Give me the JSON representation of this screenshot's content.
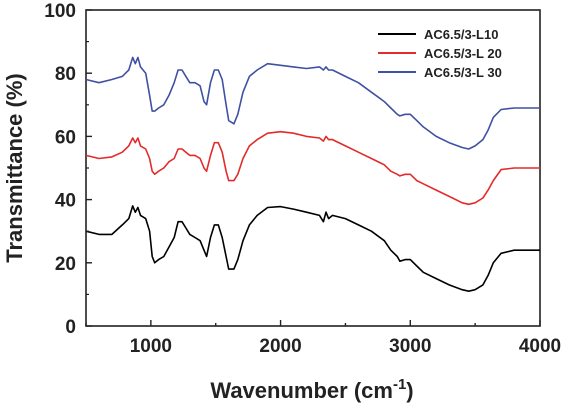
{
  "chart_data": {
    "type": "line",
    "xlabel": "Wavenumber (cm",
    "xlabel_sup": "-1",
    "xlabel_close": ")",
    "ylabel": "Transmittance (%)",
    "xlim": [
      500,
      4000
    ],
    "ylim": [
      0,
      100
    ],
    "xticks": [
      1000,
      2000,
      3000,
      4000
    ],
    "yticks": [
      0,
      20,
      40,
      60,
      80,
      100
    ],
    "xtick_labels": [
      "1000",
      "2000",
      "3000",
      "4000"
    ],
    "ytick_labels": [
      "0",
      "20",
      "40",
      "60",
      "80",
      "100"
    ],
    "grid": false,
    "legend_position": "top-right",
    "series": [
      {
        "name": "AC6.5/3-L10",
        "color": "#000000",
        "points": [
          [
            500,
            30
          ],
          [
            600,
            29
          ],
          [
            700,
            29
          ],
          [
            780,
            32
          ],
          [
            830,
            34
          ],
          [
            860,
            38
          ],
          [
            880,
            36
          ],
          [
            900,
            37.5
          ],
          [
            920,
            35
          ],
          [
            960,
            34
          ],
          [
            990,
            30
          ],
          [
            1010,
            22
          ],
          [
            1030,
            20
          ],
          [
            1060,
            21
          ],
          [
            1100,
            22
          ],
          [
            1140,
            25
          ],
          [
            1180,
            28
          ],
          [
            1210,
            33
          ],
          [
            1240,
            33
          ],
          [
            1270,
            31
          ],
          [
            1300,
            29
          ],
          [
            1340,
            28
          ],
          [
            1380,
            27
          ],
          [
            1410,
            24
          ],
          [
            1430,
            22
          ],
          [
            1460,
            28
          ],
          [
            1490,
            32
          ],
          [
            1520,
            32
          ],
          [
            1550,
            28
          ],
          [
            1580,
            22
          ],
          [
            1600,
            18
          ],
          [
            1640,
            18
          ],
          [
            1670,
            21
          ],
          [
            1710,
            27
          ],
          [
            1760,
            32
          ],
          [
            1820,
            35
          ],
          [
            1900,
            37.5
          ],
          [
            2000,
            37.8
          ],
          [
            2100,
            37
          ],
          [
            2200,
            36
          ],
          [
            2300,
            35
          ],
          [
            2330,
            33
          ],
          [
            2350,
            36
          ],
          [
            2370,
            34
          ],
          [
            2400,
            35
          ],
          [
            2500,
            34
          ],
          [
            2600,
            32
          ],
          [
            2700,
            30
          ],
          [
            2800,
            27
          ],
          [
            2850,
            24
          ],
          [
            2900,
            22
          ],
          [
            2920,
            20.5
          ],
          [
            2960,
            21
          ],
          [
            3000,
            21
          ],
          [
            3050,
            19
          ],
          [
            3100,
            17
          ],
          [
            3200,
            15
          ],
          [
            3300,
            13
          ],
          [
            3400,
            11.5
          ],
          [
            3450,
            11
          ],
          [
            3500,
            11.5
          ],
          [
            3560,
            13
          ],
          [
            3600,
            16
          ],
          [
            3640,
            20
          ],
          [
            3700,
            23
          ],
          [
            3800,
            24
          ],
          [
            4000,
            24
          ]
        ]
      },
      {
        "name": "AC6.5/3-L 20",
        "color": "#e32b2b",
        "points": [
          [
            500,
            54
          ],
          [
            600,
            53
          ],
          [
            700,
            53.5
          ],
          [
            780,
            55
          ],
          [
            830,
            57
          ],
          [
            860,
            59.5
          ],
          [
            880,
            58
          ],
          [
            900,
            59.5
          ],
          [
            920,
            57
          ],
          [
            960,
            56
          ],
          [
            990,
            53
          ],
          [
            1010,
            49
          ],
          [
            1030,
            48
          ],
          [
            1060,
            49
          ],
          [
            1100,
            50
          ],
          [
            1140,
            52
          ],
          [
            1180,
            53
          ],
          [
            1210,
            56
          ],
          [
            1240,
            56
          ],
          [
            1270,
            55
          ],
          [
            1300,
            54
          ],
          [
            1340,
            54
          ],
          [
            1380,
            53
          ],
          [
            1410,
            50
          ],
          [
            1430,
            49
          ],
          [
            1460,
            54
          ],
          [
            1490,
            58
          ],
          [
            1520,
            58
          ],
          [
            1550,
            55
          ],
          [
            1580,
            49
          ],
          [
            1600,
            46
          ],
          [
            1640,
            46
          ],
          [
            1670,
            48
          ],
          [
            1710,
            53
          ],
          [
            1760,
            57
          ],
          [
            1820,
            59
          ],
          [
            1900,
            61
          ],
          [
            2000,
            61.5
          ],
          [
            2100,
            61
          ],
          [
            2200,
            60
          ],
          [
            2300,
            59.5
          ],
          [
            2330,
            58.5
          ],
          [
            2350,
            60
          ],
          [
            2370,
            59
          ],
          [
            2400,
            59
          ],
          [
            2500,
            57
          ],
          [
            2600,
            55
          ],
          [
            2700,
            53
          ],
          [
            2800,
            51
          ],
          [
            2850,
            49
          ],
          [
            2900,
            48
          ],
          [
            2920,
            47.5
          ],
          [
            2960,
            48
          ],
          [
            3000,
            48
          ],
          [
            3050,
            46
          ],
          [
            3100,
            45
          ],
          [
            3200,
            43
          ],
          [
            3300,
            41
          ],
          [
            3400,
            39
          ],
          [
            3450,
            38.5
          ],
          [
            3500,
            39
          ],
          [
            3560,
            40.5
          ],
          [
            3600,
            43
          ],
          [
            3640,
            46
          ],
          [
            3700,
            49.5
          ],
          [
            3800,
            50
          ],
          [
            4000,
            50
          ]
        ]
      },
      {
        "name": "AC6.5/3-L 30",
        "color": "#3f51a3",
        "points": [
          [
            500,
            78
          ],
          [
            600,
            77
          ],
          [
            700,
            78
          ],
          [
            780,
            79
          ],
          [
            830,
            81
          ],
          [
            860,
            85
          ],
          [
            880,
            83
          ],
          [
            900,
            85
          ],
          [
            920,
            82
          ],
          [
            960,
            80
          ],
          [
            990,
            73
          ],
          [
            1010,
            68
          ],
          [
            1030,
            68
          ],
          [
            1060,
            69
          ],
          [
            1100,
            70
          ],
          [
            1140,
            73
          ],
          [
            1180,
            77
          ],
          [
            1210,
            81
          ],
          [
            1240,
            81
          ],
          [
            1270,
            79
          ],
          [
            1300,
            77
          ],
          [
            1340,
            77
          ],
          [
            1380,
            76
          ],
          [
            1410,
            71
          ],
          [
            1430,
            70
          ],
          [
            1460,
            77
          ],
          [
            1490,
            81
          ],
          [
            1520,
            81
          ],
          [
            1550,
            78
          ],
          [
            1580,
            70
          ],
          [
            1600,
            65
          ],
          [
            1640,
            64
          ],
          [
            1670,
            67
          ],
          [
            1710,
            74
          ],
          [
            1760,
            79
          ],
          [
            1820,
            81
          ],
          [
            1900,
            83
          ],
          [
            2000,
            82.5
          ],
          [
            2100,
            82
          ],
          [
            2200,
            81.5
          ],
          [
            2300,
            82
          ],
          [
            2330,
            81
          ],
          [
            2350,
            82
          ],
          [
            2370,
            81
          ],
          [
            2400,
            81
          ],
          [
            2500,
            79
          ],
          [
            2600,
            77
          ],
          [
            2700,
            74
          ],
          [
            2800,
            71
          ],
          [
            2850,
            69
          ],
          [
            2900,
            67
          ],
          [
            2920,
            66.5
          ],
          [
            2960,
            67
          ],
          [
            3000,
            67
          ],
          [
            3050,
            65
          ],
          [
            3100,
            63
          ],
          [
            3200,
            60
          ],
          [
            3300,
            58
          ],
          [
            3400,
            56.5
          ],
          [
            3450,
            56
          ],
          [
            3500,
            57
          ],
          [
            3560,
            59
          ],
          [
            3600,
            62
          ],
          [
            3640,
            66
          ],
          [
            3700,
            68.5
          ],
          [
            3800,
            69
          ],
          [
            4000,
            69
          ]
        ]
      }
    ]
  }
}
